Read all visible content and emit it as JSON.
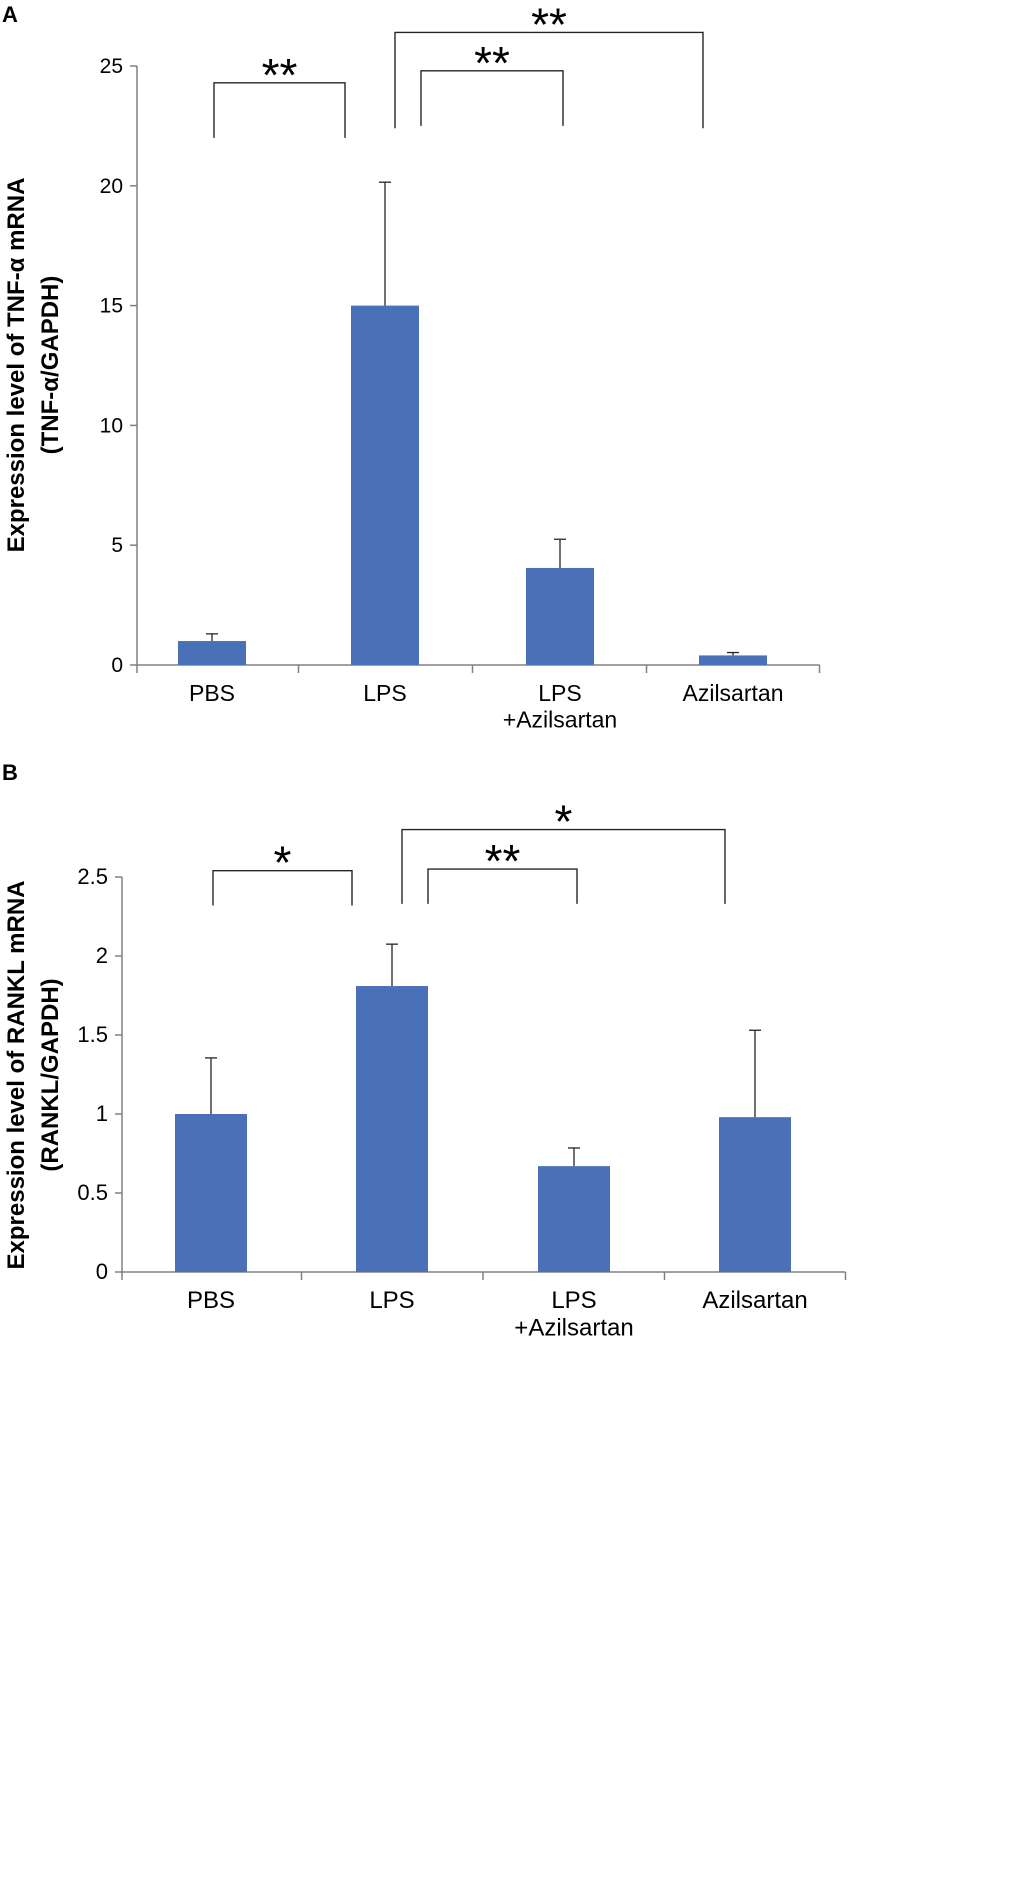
{
  "colors": {
    "bar": "#4a71b7",
    "axis": "#808080",
    "text": "#000000",
    "bracket": "#262626"
  },
  "chart_data": [
    {
      "panel_label": "A",
      "type": "bar",
      "categories": [
        "PBS",
        "LPS",
        "LPS\n+Azilsartan",
        "Azilsartan"
      ],
      "values": [
        1.0,
        15.0,
        4.05,
        0.4
      ],
      "error_upper": [
        0.3,
        5.15,
        1.2,
        0.12
      ],
      "ylabel_line1": "Expression level of TNF-α mRNA",
      "ylabel_line2": "(TNF-α/GAPDH)",
      "ylim": [
        0,
        25
      ],
      "yticks": [
        0,
        5,
        10,
        15,
        20,
        25
      ],
      "significance": [
        {
          "from": "PBS",
          "to": "LPS",
          "label": "**",
          "level": 24.3,
          "drop": 2.3
        },
        {
          "from": "LPS",
          "to": "LPS\n+Azilsartan",
          "label": "**",
          "level": 24.8,
          "drop": 2.3
        },
        {
          "from": "LPS",
          "to": "Azilsartan",
          "label": "**",
          "level": 26.4,
          "drop": 4.0
        }
      ]
    },
    {
      "panel_label": "B",
      "type": "bar",
      "categories": [
        "PBS",
        "LPS",
        "LPS\n+Azilsartan",
        "Azilsartan"
      ],
      "values": [
        1.0,
        1.81,
        0.67,
        0.98
      ],
      "error_upper": [
        0.355,
        0.265,
        0.115,
        0.55
      ],
      "ylabel_line1": "Expression level of RANKL mRNA",
      "ylabel_line2": "(RANKL/GAPDH)",
      "ylim": [
        0,
        2.5
      ],
      "yticks": [
        0,
        0.5,
        1,
        1.5,
        2,
        2.5
      ],
      "significance": [
        {
          "from": "PBS",
          "to": "LPS",
          "label": "*",
          "level": 2.54,
          "drop": 0.22
        },
        {
          "from": "LPS",
          "to": "LPS\n+Azilsartan",
          "label": "**",
          "level": 2.55,
          "drop": 0.22
        },
        {
          "from": "LPS",
          "to": "Azilsartan",
          "label": "*",
          "level": 2.8,
          "drop": 0.47
        }
      ]
    }
  ]
}
